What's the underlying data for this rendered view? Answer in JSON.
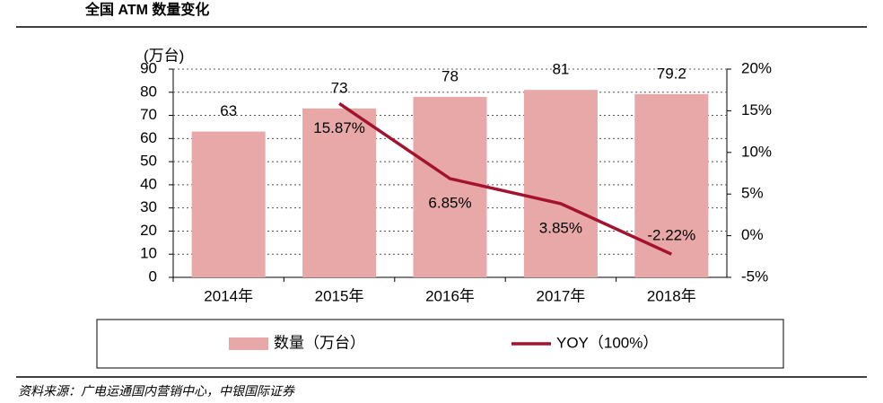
{
  "chart_data": {
    "type": "bar",
    "title": "全国 ATM 数量变化",
    "y_unit_label": "(万台)",
    "source": "资料来源：广电运通国内营销中心，中银国际证券",
    "categories": [
      "2014年",
      "2015年",
      "2016年",
      "2017年",
      "2018年"
    ],
    "series": [
      {
        "name": "数量（万台）",
        "type": "bar",
        "color": "#e8a8a8",
        "values": [
          63,
          73,
          78,
          81,
          79.2
        ]
      },
      {
        "name": "YOY（100%）",
        "type": "line",
        "axis": "y2",
        "color": "#a3132f",
        "values": [
          null,
          15.87,
          6.85,
          3.85,
          -2.22
        ],
        "value_labels": [
          null,
          "15.87%",
          "6.85%",
          "3.85%",
          "-2.22%"
        ]
      }
    ],
    "ylim": [
      0,
      90
    ],
    "yticks": [
      0,
      10,
      20,
      30,
      40,
      50,
      60,
      70,
      80,
      90
    ],
    "y2lim": [
      -5,
      20
    ],
    "y2ticks": [
      {
        "value": -5,
        "label": "-5%"
      },
      {
        "value": 0,
        "label": "0%"
      },
      {
        "value": 5,
        "label": "5%"
      },
      {
        "value": 10,
        "label": "10%"
      },
      {
        "value": 15,
        "label": "15%"
      },
      {
        "value": 20,
        "label": "20%"
      }
    ],
    "grid": true,
    "legend": "bottom"
  }
}
